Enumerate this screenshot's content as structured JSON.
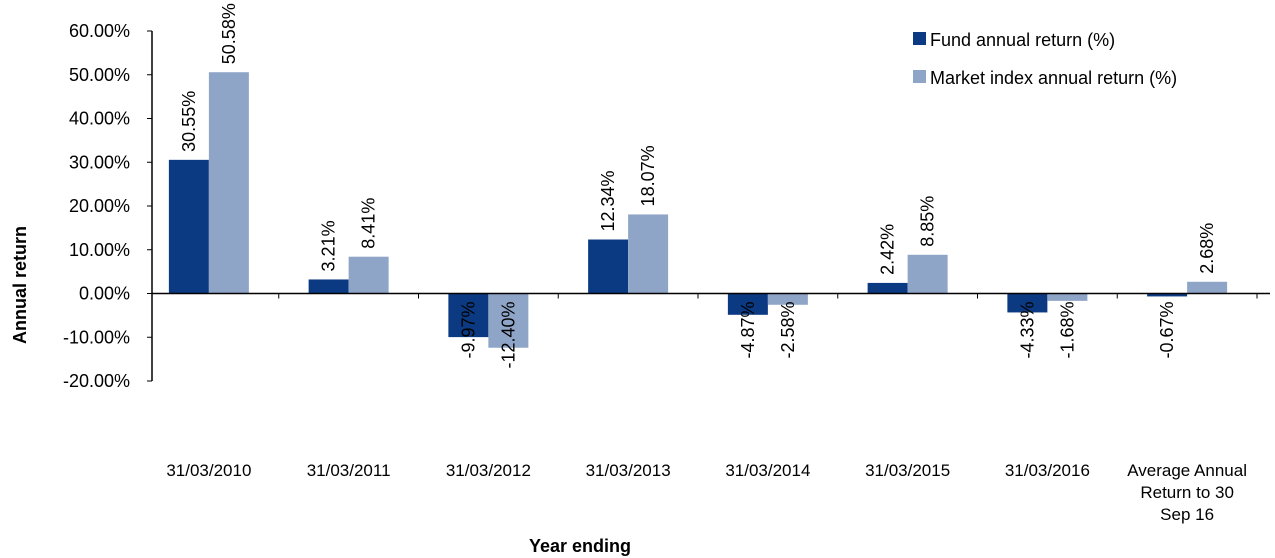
{
  "chart_data": {
    "type": "bar",
    "xlabel": "Year ending",
    "ylabel": "Annual return",
    "ylim": [
      -20,
      60
    ],
    "yticks": [
      60,
      50,
      40,
      30,
      20,
      10,
      0,
      -10,
      -20
    ],
    "ytick_labels": [
      "60.00%",
      "50.00%",
      "40.00%",
      "30.00%",
      "20.00%",
      "10.00%",
      "0.00%",
      "-10.00%",
      "-20.00%"
    ],
    "categories": [
      "31/03/2010",
      "31/03/2011",
      "31/03/2012",
      "31/03/2013",
      "31/03/2014",
      "31/03/2015",
      "31/03/2016",
      "Average Annual Return to 30 Sep 16"
    ],
    "category_lines": [
      [
        "31/03/2010"
      ],
      [
        "31/03/2011"
      ],
      [
        "31/03/2012"
      ],
      [
        "31/03/2013"
      ],
      [
        "31/03/2014"
      ],
      [
        "31/03/2015"
      ],
      [
        "31/03/2016"
      ],
      [
        "Average Annual",
        "Return to 30",
        "Sep 16"
      ]
    ],
    "series": [
      {
        "name": "Fund annual return (%)",
        "color": "#0b3a82",
        "values": [
          30.55,
          3.21,
          -9.97,
          12.34,
          -4.87,
          2.42,
          -4.33,
          -0.67
        ],
        "labels": [
          "30.55%",
          "3.21%",
          "-9.97%",
          "12.34%",
          "-4.87%",
          "2.42%",
          "-4.33%",
          "-0.67%"
        ]
      },
      {
        "name": "Market index annual return (%)",
        "color": "#8ea5c8",
        "values": [
          50.58,
          8.41,
          -12.4,
          18.07,
          -2.58,
          8.85,
          -1.68,
          2.68
        ],
        "labels": [
          "50.58%",
          "8.41%",
          "-12.40%",
          "18.07%",
          "-2.58%",
          "8.85%",
          "-1.68%",
          "2.68%"
        ]
      }
    ],
    "legend_position": "top-right",
    "grid": false
  }
}
